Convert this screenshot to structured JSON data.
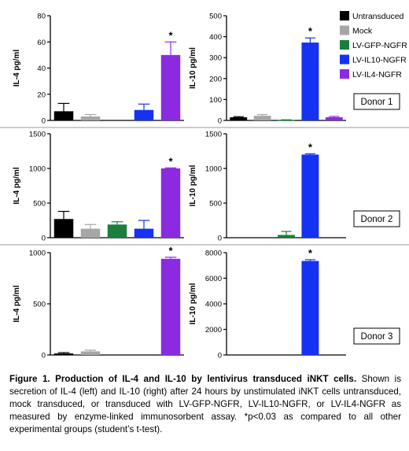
{
  "legend": {
    "entries": [
      {
        "label": "Untransduced",
        "color": "#000000"
      },
      {
        "label": "Mock",
        "color": "#a6a6a6"
      },
      {
        "label": "LV-GFP-NGFR",
        "color": "#1a7f3c"
      },
      {
        "label": "LV-IL10-NGFR",
        "color": "#1532f0"
      },
      {
        "label": "LV-IL4-NGFR",
        "color": "#8a2be2"
      }
    ]
  },
  "chart_data": [
    {
      "type": "bar",
      "id": "d1-il4",
      "donor": "Donor 1",
      "ylabel": "IL-4 pg/ml",
      "ylim": [
        0,
        80
      ],
      "yticks": [
        "0",
        "20",
        "40",
        "60",
        "80"
      ],
      "categories": [
        "Untransduced",
        "Mock",
        "LV-GFP-NGFR",
        "LV-IL10-NGFR",
        "LV-IL4-NGFR"
      ],
      "values": [
        7,
        3,
        0,
        8,
        50
      ],
      "errors": [
        6,
        1.5,
        0,
        4.5,
        10
      ],
      "significant": [
        false,
        false,
        false,
        false,
        true
      ]
    },
    {
      "type": "bar",
      "id": "d1-il10",
      "donor": "Donor 1",
      "ylabel": "IL-10 pg/ml",
      "ylim": [
        0,
        500
      ],
      "yticks": [
        "0",
        "100",
        "200",
        "300",
        "400",
        "500"
      ],
      "categories": [
        "Untransduced",
        "Mock",
        "LV-GFP-NGFR",
        "LV-IL10-NGFR",
        "LV-IL4-NGFR"
      ],
      "values": [
        15,
        22,
        2,
        372,
        15
      ],
      "errors": [
        3,
        6,
        1,
        22,
        4
      ],
      "significant": [
        false,
        false,
        false,
        true,
        false
      ]
    },
    {
      "type": "bar",
      "id": "d2-il4",
      "donor": "Donor 2",
      "ylabel": "IL-4 pg/ml",
      "ylim": [
        0,
        1500
      ],
      "yticks": [
        "0",
        "500",
        "1000",
        "1500"
      ],
      "categories": [
        "Untransduced",
        "Mock",
        "LV-GFP-NGFR",
        "LV-IL10-NGFR",
        "LV-IL4-NGFR"
      ],
      "values": [
        270,
        130,
        190,
        130,
        1000
      ],
      "errors": [
        110,
        60,
        40,
        120,
        8
      ],
      "significant": [
        false,
        false,
        false,
        false,
        true
      ]
    },
    {
      "type": "bar",
      "id": "d2-il10",
      "donor": "Donor 2",
      "ylabel": "IL-10 pg/ml",
      "ylim": [
        0,
        1500
      ],
      "yticks": [
        "0",
        "500",
        "1000",
        "1500"
      ],
      "categories": [
        "Untransduced",
        "Mock",
        "LV-GFP-NGFR",
        "LV-IL10-NGFR",
        "LV-IL4-NGFR"
      ],
      "values": [
        0,
        0,
        40,
        1200,
        0
      ],
      "errors": [
        0,
        0,
        50,
        12,
        0
      ],
      "significant": [
        false,
        false,
        false,
        true,
        false
      ]
    },
    {
      "type": "bar",
      "id": "d3-il4",
      "donor": "Donor 3",
      "ylabel": "IL-4 pg/ml",
      "ylim": [
        0,
        1000
      ],
      "yticks": [
        "0",
        "500",
        "1000"
      ],
      "categories": [
        "Untransduced",
        "Mock",
        "LV-GFP-NGFR",
        "LV-IL10-NGFR",
        "LV-IL4-NGFR"
      ],
      "values": [
        15,
        35,
        0,
        0,
        940
      ],
      "errors": [
        8,
        12,
        0,
        0,
        15
      ],
      "significant": [
        false,
        false,
        false,
        false,
        true
      ]
    },
    {
      "type": "bar",
      "id": "d3-il10",
      "donor": "Donor 3",
      "ylabel": "IL-10 pg/ml",
      "ylim": [
        0,
        8000
      ],
      "yticks": [
        "0",
        "2000",
        "4000",
        "6000",
        "8000"
      ],
      "categories": [
        "Untransduced",
        "Mock",
        "LV-GFP-NGFR",
        "LV-IL10-NGFR",
        "LV-IL4-NGFR"
      ],
      "values": [
        0,
        0,
        0,
        7350,
        0
      ],
      "errors": [
        0,
        0,
        0,
        100,
        0
      ],
      "significant": [
        false,
        false,
        false,
        true,
        false
      ]
    }
  ],
  "significance_marker": "*",
  "caption": {
    "title": "Figure 1. Production of IL-4 and IL-10 by lentivirus transduced iNKT cells.",
    "body": "Shown is secretion of IL-4 (left) and IL-10 (right) after 24 hours by unstimulated iNKT cells untransduced, mock transduced, or transduced with LV-GFP-NGFR, LV-IL10-NGFR, or LV-IL4-NGFR as measured by enzyme-linked immunosorbent assay. *p<0.03 as compared to all other experimental groups (student’s t-test)."
  }
}
